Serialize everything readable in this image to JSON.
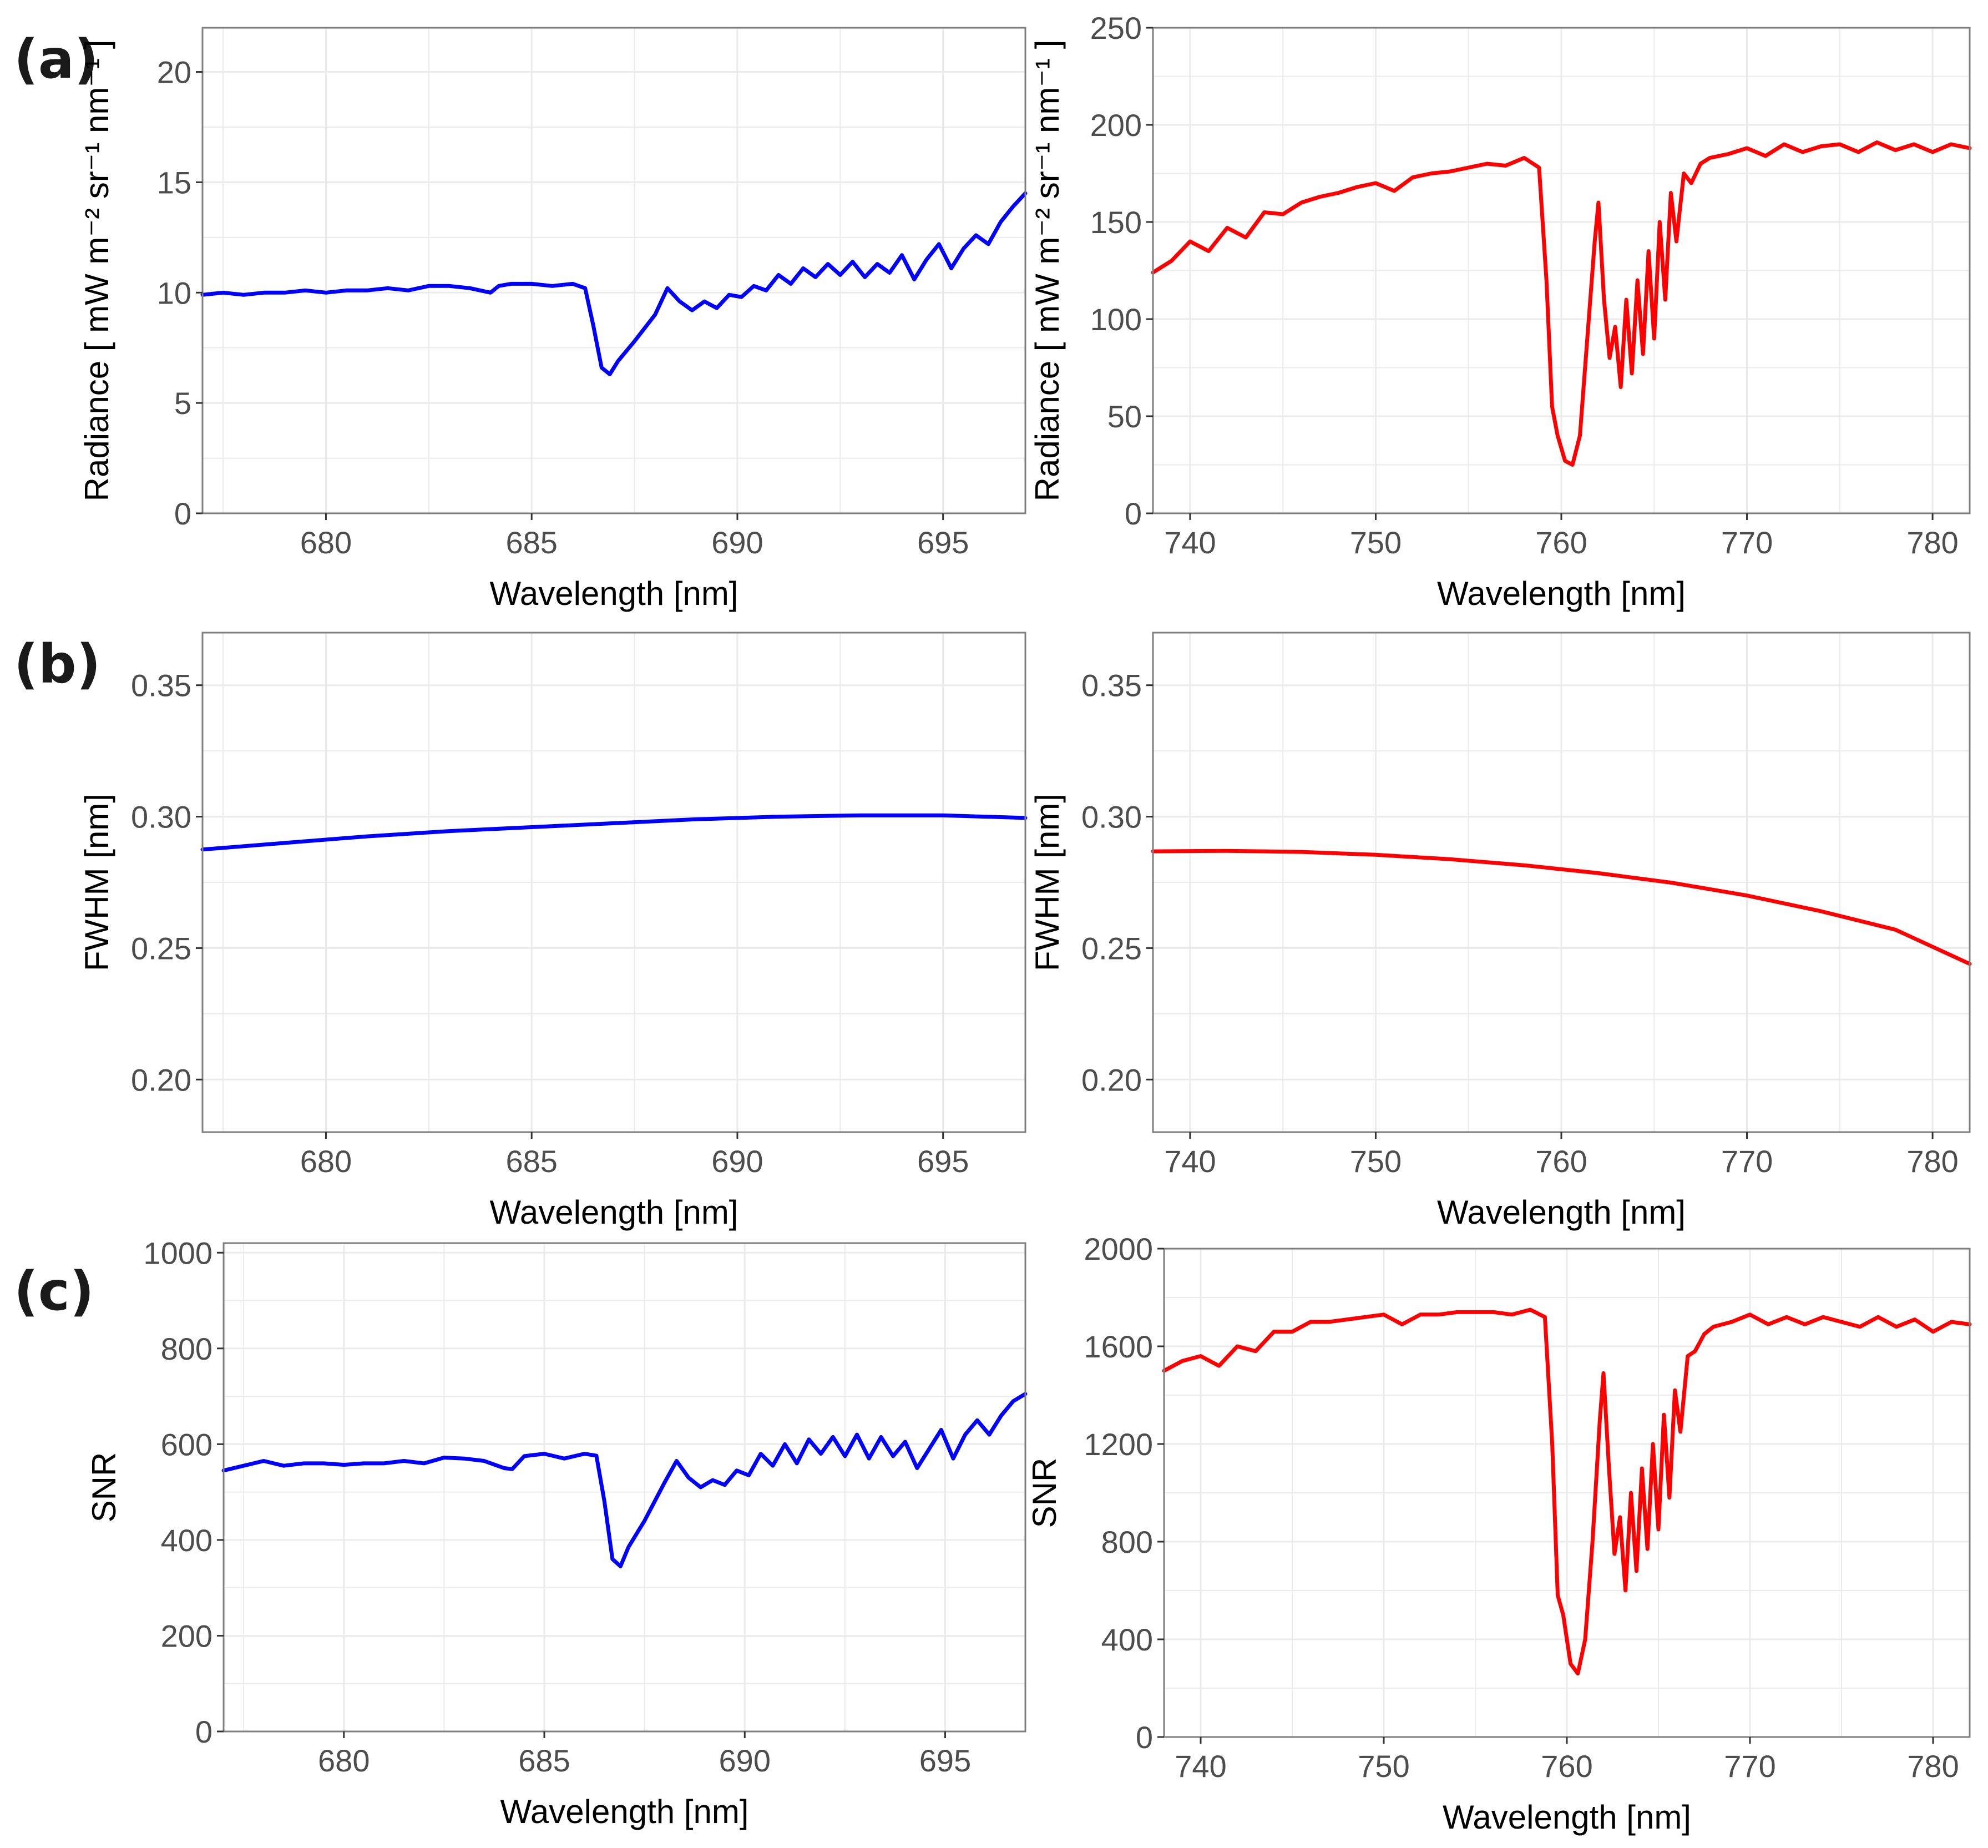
{
  "panel_labels": {
    "a": "(a)",
    "b": "(b)",
    "c": "(c)"
  },
  "colors": {
    "blue": "#0000ff",
    "red": "#ff0000",
    "grid": "#ebebeb",
    "frame": "#7f7f7f"
  },
  "chart_data": [
    {
      "type": "line",
      "id": "a-left",
      "panel": "a",
      "title": "",
      "xlabel": "Wavelength [nm]",
      "ylabel": "Radiance [ mW m⁻² sr⁻¹ nm⁻¹ ]",
      "xlim": [
        677,
        697
      ],
      "ylim": [
        0,
        22
      ],
      "xticks": [
        680,
        685,
        690,
        695
      ],
      "yticks": [
        0,
        5,
        10,
        15,
        20
      ],
      "color": "#0000ff",
      "x": [
        677.0,
        677.5,
        678.0,
        678.5,
        679.0,
        679.5,
        680.0,
        680.5,
        681.0,
        681.5,
        682.0,
        682.5,
        683.0,
        683.5,
        684.0,
        684.2,
        684.5,
        685.0,
        685.5,
        686.0,
        686.3,
        686.5,
        686.7,
        686.9,
        687.1,
        687.5,
        688.0,
        688.3,
        688.6,
        688.9,
        689.2,
        689.5,
        689.8,
        690.1,
        690.4,
        690.7,
        691.0,
        691.3,
        691.6,
        691.9,
        692.2,
        692.5,
        692.8,
        693.1,
        693.4,
        693.7,
        694.0,
        694.3,
        694.6,
        694.9,
        695.2,
        695.5,
        695.8,
        696.1,
        696.4,
        696.7,
        697.0
      ],
      "y": [
        9.9,
        10.0,
        9.9,
        10.0,
        10.0,
        10.1,
        10.0,
        10.1,
        10.1,
        10.2,
        10.1,
        10.3,
        10.3,
        10.2,
        10.0,
        10.3,
        10.4,
        10.4,
        10.3,
        10.4,
        10.2,
        8.5,
        6.6,
        6.3,
        6.9,
        7.8,
        9.0,
        10.2,
        9.6,
        9.2,
        9.6,
        9.3,
        9.9,
        9.8,
        10.3,
        10.1,
        10.8,
        10.4,
        11.1,
        10.7,
        11.3,
        10.8,
        11.4,
        10.7,
        11.3,
        10.9,
        11.7,
        10.6,
        11.5,
        12.2,
        11.1,
        12.0,
        12.6,
        12.2,
        13.2,
        13.9,
        14.5
      ]
    },
    {
      "type": "line",
      "id": "a-right",
      "panel": "a",
      "title": "",
      "xlabel": "Wavelength [nm]",
      "ylabel": "Radiance [ mW m⁻² sr⁻¹ nm⁻¹ ]",
      "xlim": [
        738,
        782
      ],
      "ylim": [
        0,
        250
      ],
      "xticks": [
        740,
        750,
        760,
        770,
        780
      ],
      "yticks": [
        0,
        50,
        100,
        150,
        200,
        250
      ],
      "color": "#ff0000",
      "x": [
        738,
        739,
        740,
        741,
        742,
        743,
        744,
        745,
        746,
        747,
        748,
        749,
        750,
        751,
        752,
        753,
        754,
        755,
        756,
        757,
        758,
        758.8,
        759.2,
        759.5,
        759.8,
        760.2,
        760.6,
        761.0,
        761.4,
        761.8,
        762.0,
        762.3,
        762.6,
        762.9,
        763.2,
        763.5,
        763.8,
        764.1,
        764.4,
        764.7,
        765.0,
        765.3,
        765.6,
        765.9,
        766.2,
        766.6,
        767.0,
        767.5,
        768,
        769,
        770,
        771,
        772,
        773,
        774,
        775,
        776,
        777,
        778,
        779,
        780,
        781,
        782
      ],
      "y": [
        124,
        130,
        140,
        135,
        147,
        142,
        155,
        154,
        160,
        163,
        165,
        168,
        170,
        166,
        173,
        175,
        176,
        178,
        180,
        179,
        183,
        178,
        120,
        55,
        40,
        27,
        25,
        40,
        90,
        140,
        160,
        110,
        80,
        96,
        65,
        110,
        72,
        120,
        82,
        135,
        90,
        150,
        110,
        165,
        140,
        175,
        170,
        180,
        183,
        185,
        188,
        184,
        190,
        186,
        189,
        190,
        186,
        191,
        187,
        190,
        186,
        190,
        188
      ]
    },
    {
      "type": "line",
      "id": "b-left",
      "panel": "b",
      "title": "",
      "xlabel": "Wavelength [nm]",
      "ylabel": "FWHM [nm]",
      "xlim": [
        677,
        697
      ],
      "ylim": [
        0.18,
        0.37
      ],
      "xticks": [
        680,
        685,
        690,
        695
      ],
      "yticks": [
        0.2,
        0.25,
        0.3,
        0.35
      ],
      "ytick_labels": [
        "0.20",
        "0.25",
        "0.30",
        "0.35"
      ],
      "color": "#0000ff",
      "x": [
        677,
        679,
        681,
        683,
        685,
        687,
        689,
        691,
        693,
        695,
        697
      ],
      "y": [
        0.2875,
        0.29,
        0.2925,
        0.2945,
        0.296,
        0.2975,
        0.299,
        0.3,
        0.3005,
        0.3005,
        0.2995
      ]
    },
    {
      "type": "line",
      "id": "b-right",
      "panel": "b",
      "title": "",
      "xlabel": "Wavelength [nm]",
      "ylabel": "FWHM [nm]",
      "xlim": [
        738,
        782
      ],
      "ylim": [
        0.18,
        0.37
      ],
      "xticks": [
        740,
        750,
        760,
        770,
        780
      ],
      "yticks": [
        0.2,
        0.25,
        0.3,
        0.35
      ],
      "ytick_labels": [
        "0.20",
        "0.25",
        "0.30",
        "0.35"
      ],
      "color": "#ff0000",
      "x": [
        738,
        742,
        746,
        750,
        754,
        758,
        762,
        766,
        770,
        774,
        778,
        782
      ],
      "y": [
        0.2868,
        0.287,
        0.2866,
        0.2855,
        0.2838,
        0.2815,
        0.2785,
        0.2748,
        0.27,
        0.264,
        0.257,
        0.244
      ]
    },
    {
      "type": "line",
      "id": "c-left",
      "panel": "c",
      "title": "",
      "xlabel": "Wavelength [nm]",
      "ylabel": "SNR",
      "xlim": [
        677,
        697
      ],
      "ylim": [
        0,
        1020
      ],
      "xticks": [
        680,
        685,
        690,
        695
      ],
      "yticks": [
        0,
        200,
        400,
        600,
        800,
        1000
      ],
      "color": "#0000ff",
      "x": [
        677.0,
        677.5,
        678.0,
        678.5,
        679.0,
        679.5,
        680.0,
        680.5,
        681.0,
        681.5,
        682.0,
        682.5,
        683.0,
        683.5,
        684.0,
        684.2,
        684.5,
        685.0,
        685.5,
        686.0,
        686.3,
        686.5,
        686.7,
        686.9,
        687.1,
        687.5,
        688.0,
        688.3,
        688.6,
        688.9,
        689.2,
        689.5,
        689.8,
        690.1,
        690.4,
        690.7,
        691.0,
        691.3,
        691.6,
        691.9,
        692.2,
        692.5,
        692.8,
        693.1,
        693.4,
        693.7,
        694.0,
        694.3,
        694.6,
        694.9,
        695.2,
        695.5,
        695.8,
        696.1,
        696.4,
        696.7,
        697.0
      ],
      "y": [
        545,
        555,
        565,
        555,
        560,
        560,
        557,
        560,
        560,
        565,
        560,
        572,
        570,
        565,
        550,
        548,
        575,
        580,
        570,
        580,
        576,
        480,
        360,
        345,
        385,
        440,
        520,
        565,
        530,
        510,
        525,
        515,
        545,
        535,
        580,
        555,
        600,
        560,
        610,
        580,
        615,
        575,
        620,
        570,
        615,
        575,
        605,
        550,
        590,
        630,
        570,
        620,
        650,
        620,
        660,
        690,
        705
      ]
    },
    {
      "type": "line",
      "id": "c-right",
      "panel": "c",
      "title": "",
      "xlabel": "Wavelength [nm]",
      "ylabel": "SNR",
      "xlim": [
        738,
        782
      ],
      "ylim": [
        0,
        2000
      ],
      "xticks": [
        740,
        750,
        760,
        770,
        780
      ],
      "yticks": [
        0,
        400,
        800,
        1200,
        1600,
        2000
      ],
      "color": "#ff0000",
      "x": [
        738,
        739,
        740,
        741,
        742,
        743,
        744,
        745,
        746,
        747,
        748,
        749,
        750,
        751,
        752,
        753,
        754,
        755,
        756,
        757,
        758,
        758.8,
        759.2,
        759.5,
        759.8,
        760.2,
        760.6,
        761.0,
        761.4,
        761.8,
        762.0,
        762.3,
        762.6,
        762.9,
        763.2,
        763.5,
        763.8,
        764.1,
        764.4,
        764.7,
        765.0,
        765.3,
        765.6,
        765.9,
        766.2,
        766.6,
        767.0,
        767.5,
        768,
        769,
        770,
        771,
        772,
        773,
        774,
        775,
        776,
        777,
        778,
        779,
        780,
        781,
        782
      ],
      "y": [
        1500,
        1540,
        1560,
        1520,
        1600,
        1580,
        1660,
        1660,
        1700,
        1700,
        1710,
        1720,
        1730,
        1690,
        1730,
        1730,
        1740,
        1740,
        1740,
        1730,
        1750,
        1720,
        1200,
        580,
        500,
        300,
        260,
        400,
        800,
        1300,
        1490,
        1100,
        750,
        900,
        600,
        1000,
        680,
        1100,
        770,
        1200,
        850,
        1320,
        980,
        1420,
        1250,
        1560,
        1580,
        1650,
        1680,
        1700,
        1730,
        1690,
        1720,
        1690,
        1720,
        1700,
        1680,
        1720,
        1680,
        1710,
        1660,
        1700,
        1690
      ]
    }
  ]
}
